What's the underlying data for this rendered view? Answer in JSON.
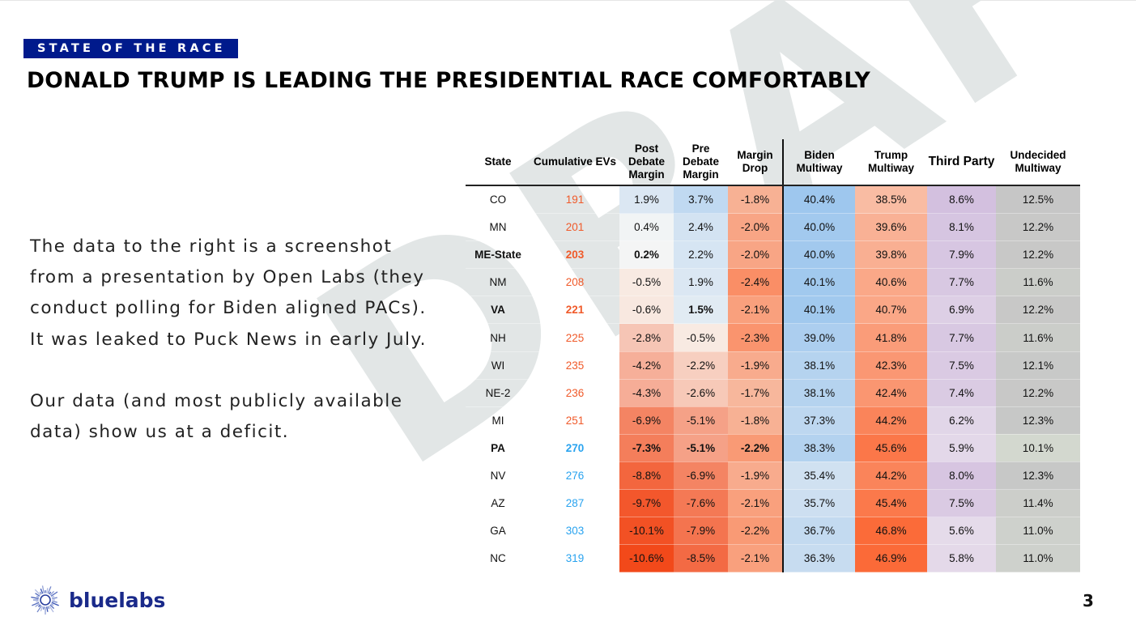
{
  "watermark": "DRAFT",
  "section_tag": "STATE OF THE RACE",
  "title": "DONALD TRUMP IS LEADING THE PRESIDENTIAL RACE COMFORTABLY",
  "body": {
    "paragraph1": "The data to the right is a screenshot from a presentation by Open Labs (they conduct polling for Biden aligned PACs). It was leaked to Puck News in early July.",
    "paragraph2": "Our data (and most publicly available data) show us at a deficit."
  },
  "table": {
    "headers": [
      "State",
      "Cumulative EVs",
      "Post Debate Margin",
      "Pre Debate Margin",
      "Margin Drop",
      "Biden Multiway",
      "Trump Multiway",
      "Third Party",
      "Undecided Multiway"
    ],
    "ev_colors": {
      "trump": "#f05a2a",
      "biden": "#29a3ef"
    },
    "rows": [
      {
        "state": "CO",
        "ev": "191",
        "post": "1.9%",
        "pre": "3.7%",
        "drop": "-1.8%",
        "biden": "40.4%",
        "trump": "38.5%",
        "third": "8.6%",
        "undecided": "12.5%",
        "bold": false,
        "bold_cells": []
      },
      {
        "state": "MN",
        "ev": "201",
        "post": "0.4%",
        "pre": "2.4%",
        "drop": "-2.0%",
        "biden": "40.0%",
        "trump": "39.6%",
        "third": "8.1%",
        "undecided": "12.2%",
        "bold": false,
        "bold_cells": []
      },
      {
        "state": "ME-State",
        "ev": "203",
        "post": "0.2%",
        "pre": "2.2%",
        "drop": "-2.0%",
        "biden": "40.0%",
        "trump": "39.8%",
        "third": "7.9%",
        "undecided": "12.2%",
        "bold": true,
        "bold_cells": [
          "post"
        ]
      },
      {
        "state": "NM",
        "ev": "208",
        "post": "-0.5%",
        "pre": "1.9%",
        "drop": "-2.4%",
        "biden": "40.1%",
        "trump": "40.6%",
        "third": "7.7%",
        "undecided": "11.6%",
        "bold": false,
        "bold_cells": []
      },
      {
        "state": "VA",
        "ev": "221",
        "post": "-0.6%",
        "pre": "1.5%",
        "drop": "-2.1%",
        "biden": "40.1%",
        "trump": "40.7%",
        "third": "6.9%",
        "undecided": "12.2%",
        "bold": true,
        "bold_cells": [
          "pre"
        ]
      },
      {
        "state": "NH",
        "ev": "225",
        "post": "-2.8%",
        "pre": "-0.5%",
        "drop": "-2.3%",
        "biden": "39.0%",
        "trump": "41.8%",
        "third": "7.7%",
        "undecided": "11.6%",
        "bold": false,
        "bold_cells": []
      },
      {
        "state": "WI",
        "ev": "235",
        "post": "-4.2%",
        "pre": "-2.2%",
        "drop": "-1.9%",
        "biden": "38.1%",
        "trump": "42.3%",
        "third": "7.5%",
        "undecided": "12.1%",
        "bold": false,
        "bold_cells": []
      },
      {
        "state": "NE-2",
        "ev": "236",
        "post": "-4.3%",
        "pre": "-2.6%",
        "drop": "-1.7%",
        "biden": "38.1%",
        "trump": "42.4%",
        "third": "7.4%",
        "undecided": "12.2%",
        "bold": false,
        "bold_cells": []
      },
      {
        "state": "MI",
        "ev": "251",
        "post": "-6.9%",
        "pre": "-5.1%",
        "drop": "-1.8%",
        "biden": "37.3%",
        "trump": "44.2%",
        "third": "6.2%",
        "undecided": "12.3%",
        "bold": false,
        "bold_cells": []
      },
      {
        "state": "PA",
        "ev": "270",
        "post": "-7.3%",
        "pre": "-5.1%",
        "drop": "-2.2%",
        "biden": "38.3%",
        "trump": "45.6%",
        "third": "5.9%",
        "undecided": "10.1%",
        "bold": true,
        "bold_cells": [
          "post",
          "pre",
          "drop"
        ]
      },
      {
        "state": "NV",
        "ev": "276",
        "post": "-8.8%",
        "pre": "-6.9%",
        "drop": "-1.9%",
        "biden": "35.4%",
        "trump": "44.2%",
        "third": "8.0%",
        "undecided": "12.3%",
        "bold": false,
        "bold_cells": []
      },
      {
        "state": "AZ",
        "ev": "287",
        "post": "-9.7%",
        "pre": "-7.6%",
        "drop": "-2.1%",
        "biden": "35.7%",
        "trump": "45.4%",
        "third": "7.5%",
        "undecided": "11.4%",
        "bold": false,
        "bold_cells": []
      },
      {
        "state": "GA",
        "ev": "303",
        "post": "-10.1%",
        "pre": "-7.9%",
        "drop": "-2.2%",
        "biden": "36.7%",
        "trump": "46.8%",
        "third": "5.6%",
        "undecided": "11.0%",
        "bold": false,
        "bold_cells": []
      },
      {
        "state": "NC",
        "ev": "319",
        "post": "-10.6%",
        "pre": "-8.5%",
        "drop": "-2.1%",
        "biden": "36.3%",
        "trump": "46.9%",
        "third": "5.8%",
        "undecided": "11.0%",
        "bold": false,
        "bold_cells": []
      }
    ]
  },
  "logo": {
    "name": "bluelabs"
  },
  "page_number": "3"
}
